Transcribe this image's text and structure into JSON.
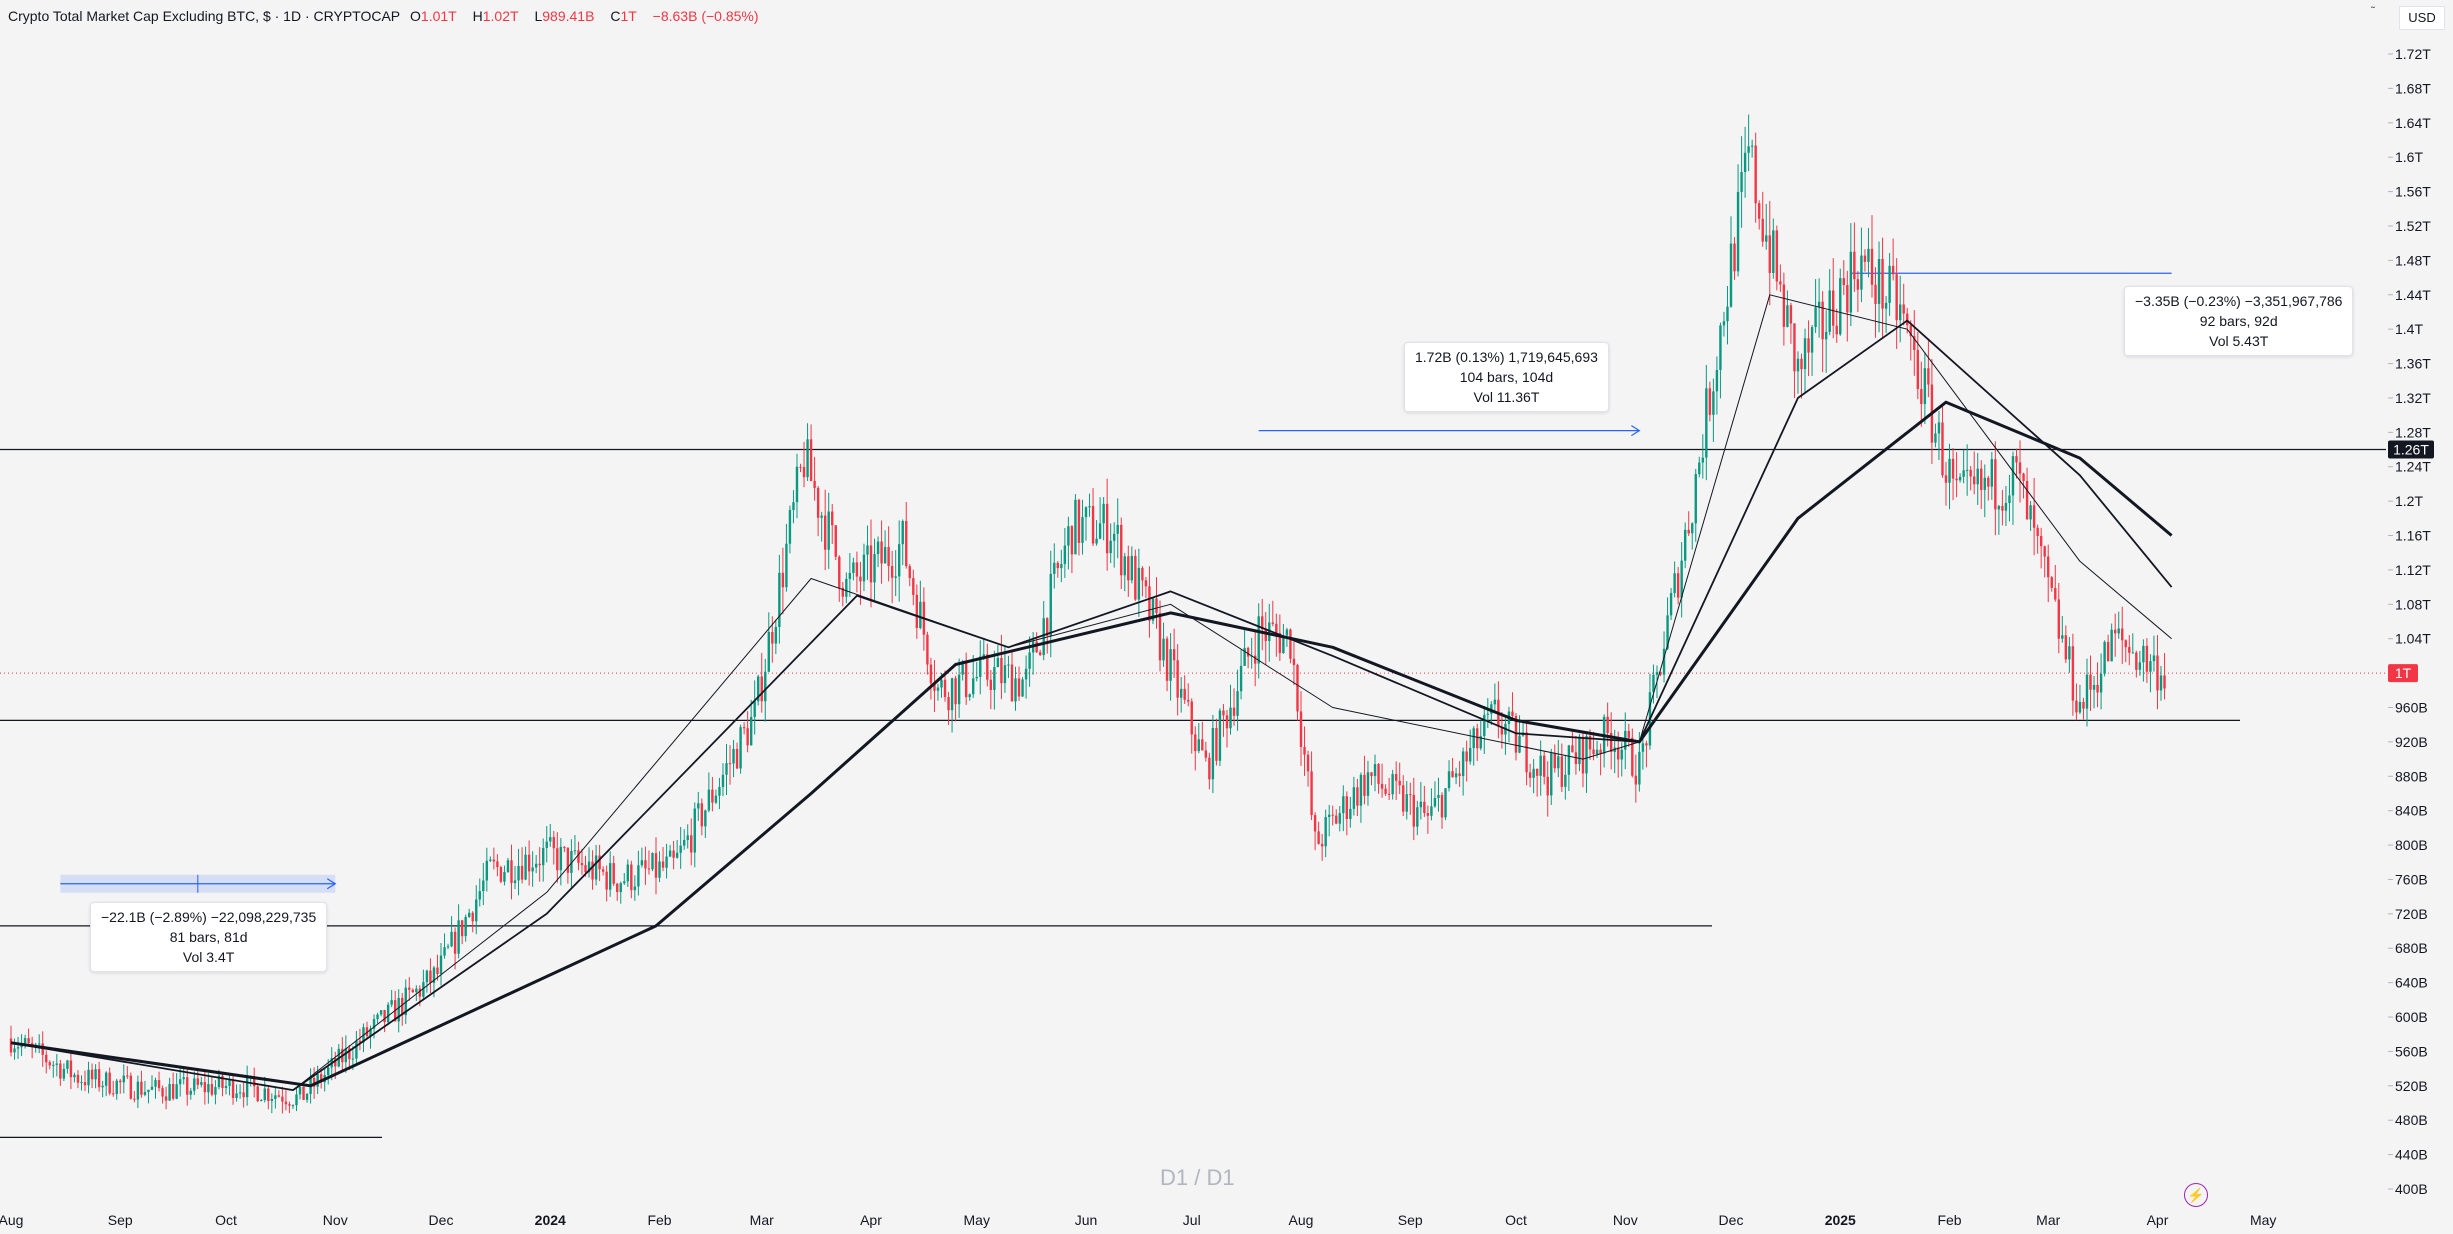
{
  "header": {
    "title": "Crypto Total Market Cap Excluding BTC, $ · 1D · CRYPTOCAP",
    "open_label": "O",
    "open": "1.01T",
    "high_label": "H",
    "high": "1.02T",
    "low_label": "L",
    "low": "989.41B",
    "close_label": "C",
    "close": "1T",
    "change": "−8.63B (−0.85%)"
  },
  "currency": "USD",
  "watermark": "D1 / D1",
  "corner_mark": "˜",
  "price_badges": {
    "resistance": "1.26T",
    "current": "1T"
  },
  "measurements": [
    {
      "line1": "−22.1B (−2.89%) −22,098,229,735",
      "line2": "81 bars, 81d",
      "line3": "Vol 3.4T"
    },
    {
      "line1": "1.72B (0.13%) 1,719,645,693",
      "line2": "104 bars, 104d",
      "line3": "Vol 11.36T"
    },
    {
      "line1": "−3.35B (−0.23%) −3,351,967,786",
      "line2": "92 bars, 92d",
      "line3": "Vol 5.43T"
    }
  ],
  "colors": {
    "up": "#089981",
    "down": "#f23645",
    "ma": "#131722",
    "measure_blue": "#2962ff",
    "badge": "#f23645"
  },
  "chart_data": {
    "type": "candlestick",
    "title": "Crypto Total Market Cap Excluding BTC",
    "ylabel": "",
    "ylim": [
      400,
      1720
    ],
    "y_unit": "billion USD",
    "y_ticks": [
      "1.72T",
      "1.68T",
      "1.64T",
      "1.6T",
      "1.56T",
      "1.52T",
      "1.48T",
      "1.44T",
      "1.4T",
      "1.36T",
      "1.32T",
      "1.28T",
      "1.24T",
      "1.2T",
      "1.16T",
      "1.12T",
      "1.08T",
      "1.04T",
      "960B",
      "920B",
      "880B",
      "840B",
      "800B",
      "760B",
      "720B",
      "680B",
      "640B",
      "600B",
      "560B",
      "520B",
      "480B",
      "440B",
      "400B"
    ],
    "x_ticks": [
      "Aug",
      "Sep",
      "Oct",
      "Nov",
      "Dec",
      "2024",
      "Feb",
      "Mar",
      "Apr",
      "May",
      "Jun",
      "Jul",
      "Aug",
      "Sep",
      "Oct",
      "Nov",
      "Dec",
      "2025",
      "Feb",
      "Mar",
      "Apr",
      "May"
    ],
    "x_bold": [
      "2024",
      "2025"
    ],
    "horizontal_levels": [
      1260,
      945,
      706,
      460
    ],
    "price_path": [
      {
        "date": "2023-08-01",
        "value": 575
      },
      {
        "date": "2023-08-20",
        "value": 530
      },
      {
        "date": "2023-09-10",
        "value": 515
      },
      {
        "date": "2023-10-05",
        "value": 520
      },
      {
        "date": "2023-10-22",
        "value": 505
      },
      {
        "date": "2023-11-10",
        "value": 580
      },
      {
        "date": "2023-11-30",
        "value": 650
      },
      {
        "date": "2023-12-15",
        "value": 770
      },
      {
        "date": "2023-12-31",
        "value": 790
      },
      {
        "date": "2024-01-20",
        "value": 760
      },
      {
        "date": "2024-02-05",
        "value": 775
      },
      {
        "date": "2024-02-28",
        "value": 950
      },
      {
        "date": "2024-03-13",
        "value": 1250
      },
      {
        "date": "2024-03-25",
        "value": 1100
      },
      {
        "date": "2024-04-10",
        "value": 1150
      },
      {
        "date": "2024-04-20",
        "value": 980
      },
      {
        "date": "2024-05-05",
        "value": 1000
      },
      {
        "date": "2024-05-15",
        "value": 990
      },
      {
        "date": "2024-05-28",
        "value": 1170
      },
      {
        "date": "2024-06-08",
        "value": 1170
      },
      {
        "date": "2024-06-20",
        "value": 1060
      },
      {
        "date": "2024-07-05",
        "value": 890
      },
      {
        "date": "2024-07-20",
        "value": 1050
      },
      {
        "date": "2024-07-29",
        "value": 1040
      },
      {
        "date": "2024-08-05",
        "value": 800
      },
      {
        "date": "2024-08-20",
        "value": 880
      },
      {
        "date": "2024-09-06",
        "value": 830
      },
      {
        "date": "2024-09-25",
        "value": 950
      },
      {
        "date": "2024-10-10",
        "value": 880
      },
      {
        "date": "2024-10-28",
        "value": 930
      },
      {
        "date": "2024-11-05",
        "value": 890
      },
      {
        "date": "2024-11-20",
        "value": 1200
      },
      {
        "date": "2024-12-06",
        "value": 1600
      },
      {
        "date": "2024-12-20",
        "value": 1350
      },
      {
        "date": "2025-01-06",
        "value": 1480
      },
      {
        "date": "2025-01-18",
        "value": 1420
      },
      {
        "date": "2025-02-03",
        "value": 1200
      },
      {
        "date": "2025-02-20",
        "value": 1230
      },
      {
        "date": "2025-03-10",
        "value": 960
      },
      {
        "date": "2025-03-20",
        "value": 1040
      },
      {
        "date": "2025-04-03",
        "value": 1000
      }
    ],
    "series": [
      {
        "name": "",
        "type": "ma_fast",
        "values": [
          {
            "date": "2023-08-01",
            "value": 570
          },
          {
            "date": "2023-10-20",
            "value": 515
          },
          {
            "date": "2023-12-31",
            "value": 745
          },
          {
            "date": "2024-03-15",
            "value": 1110
          },
          {
            "date": "2024-05-10",
            "value": 1030
          },
          {
            "date": "2024-06-25",
            "value": 1080
          },
          {
            "date": "2024-08-10",
            "value": 960
          },
          {
            "date": "2024-10-20",
            "value": 900
          },
          {
            "date": "2024-11-05",
            "value": 920
          },
          {
            "date": "2024-12-12",
            "value": 1440
          },
          {
            "date": "2025-01-20",
            "value": 1400
          },
          {
            "date": "2025-03-10",
            "value": 1130
          },
          {
            "date": "2025-04-05",
            "value": 1040
          }
        ]
      },
      {
        "name": "",
        "type": "ma_mid",
        "values": [
          {
            "date": "2023-08-01",
            "value": 570
          },
          {
            "date": "2023-10-20",
            "value": 515
          },
          {
            "date": "2023-12-31",
            "value": 720
          },
          {
            "date": "2024-03-28",
            "value": 1090
          },
          {
            "date": "2024-05-10",
            "value": 1030
          },
          {
            "date": "2024-06-25",
            "value": 1095
          },
          {
            "date": "2024-08-10",
            "value": 1020
          },
          {
            "date": "2024-10-01",
            "value": 930
          },
          {
            "date": "2024-11-05",
            "value": 920
          },
          {
            "date": "2024-12-20",
            "value": 1320
          },
          {
            "date": "2025-01-20",
            "value": 1410
          },
          {
            "date": "2025-03-10",
            "value": 1230
          },
          {
            "date": "2025-04-05",
            "value": 1100
          }
        ]
      },
      {
        "name": "",
        "type": "ma_slow",
        "values": [
          {
            "date": "2023-08-01",
            "value": 570
          },
          {
            "date": "2023-10-25",
            "value": 520
          },
          {
            "date": "2024-01-31",
            "value": 706
          },
          {
            "date": "2024-03-15",
            "value": 860
          },
          {
            "date": "2024-04-25",
            "value": 1010
          },
          {
            "date": "2024-06-25",
            "value": 1070
          },
          {
            "date": "2024-08-10",
            "value": 1030
          },
          {
            "date": "2024-10-01",
            "value": 945
          },
          {
            "date": "2024-11-05",
            "value": 920
          },
          {
            "date": "2024-12-20",
            "value": 1180
          },
          {
            "date": "2025-01-31",
            "value": 1315
          },
          {
            "date": "2025-03-10",
            "value": 1250
          },
          {
            "date": "2025-04-05",
            "value": 1160
          }
        ]
      }
    ],
    "measure_ranges": [
      {
        "from": "2023-08-15",
        "to": "2023-11-01",
        "value": 755
      },
      {
        "from": "2024-07-20",
        "to": "2024-11-05",
        "value": 1282
      },
      {
        "from": "2025-01-04",
        "to": "2025-04-05",
        "value": 1465
      }
    ]
  }
}
